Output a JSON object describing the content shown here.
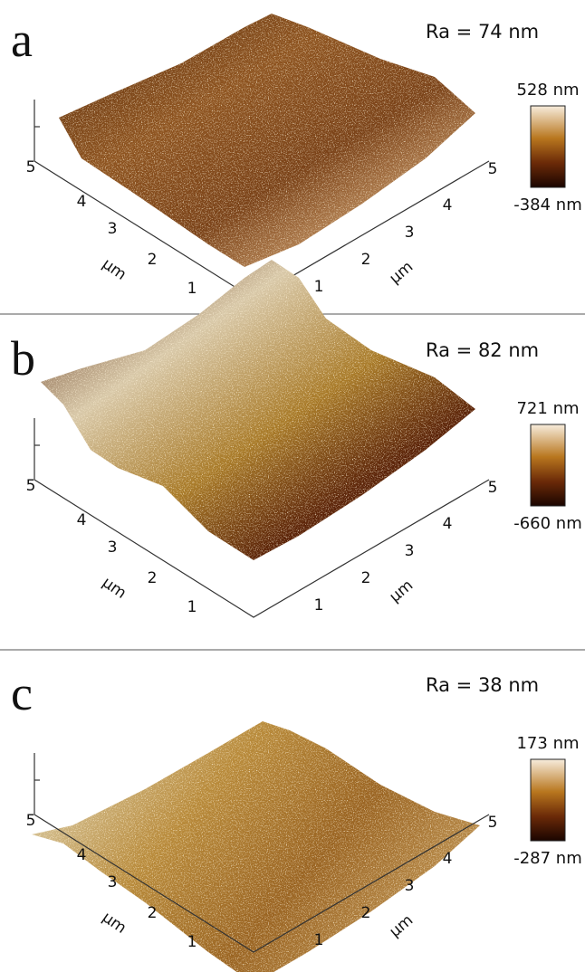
{
  "panels": [
    {
      "label": "a",
      "roughness": "Ra = 74 nm",
      "colorbar": {
        "max": "528 nm",
        "min": "-384 nm"
      },
      "left_axis": {
        "ticks": [
          "1",
          "2",
          "3",
          "4",
          "5"
        ],
        "unit": "μm"
      },
      "right_axis": {
        "ticks": [
          "1",
          "2",
          "3",
          "4",
          "5"
        ],
        "unit": "μm"
      }
    },
    {
      "label": "b",
      "roughness": "Ra = 82 nm",
      "colorbar": {
        "max": "721 nm",
        "min": "-660 nm"
      },
      "left_axis": {
        "ticks": [
          "1",
          "2",
          "3",
          "4",
          "5"
        ],
        "unit": "μm"
      },
      "right_axis": {
        "ticks": [
          "1",
          "2",
          "3",
          "4",
          "5"
        ],
        "unit": "μm"
      }
    },
    {
      "label": "c",
      "roughness": "Ra = 38 nm",
      "colorbar": {
        "max": "173 nm",
        "min": "-287 nm"
      },
      "left_axis": {
        "ticks": [
          "1",
          "2",
          "3",
          "4",
          "5"
        ],
        "unit": "μm"
      },
      "right_axis": {
        "ticks": [
          "1",
          "2",
          "3",
          "4",
          "5"
        ],
        "unit": "μm"
      }
    }
  ]
}
